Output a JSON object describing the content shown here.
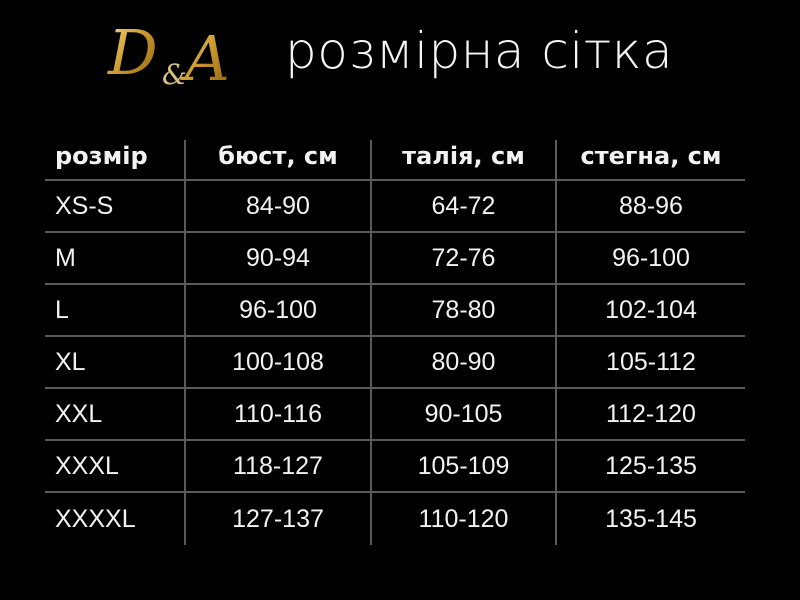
{
  "header": {
    "logo_text": "D&A",
    "title": "розмірна сітка",
    "logo_color": "#d4a832"
  },
  "table": {
    "columns": [
      "розмір",
      "бюст, см",
      "талія, см",
      "стегна, см"
    ],
    "rows": [
      [
        "XS-S",
        "84-90",
        "64-72",
        "88-96"
      ],
      [
        "M",
        "90-94",
        "72-76",
        "96-100"
      ],
      [
        "L",
        "96-100",
        "78-80",
        "102-104"
      ],
      [
        "XL",
        "100-108",
        "80-90",
        "105-112"
      ],
      [
        "XXL",
        "110-116",
        "90-105",
        "112-120"
      ],
      [
        "XXXL",
        "118-127",
        "105-109",
        "125-135"
      ],
      [
        "XXXXL",
        "127-137",
        "110-120",
        "135-145"
      ]
    ]
  }
}
